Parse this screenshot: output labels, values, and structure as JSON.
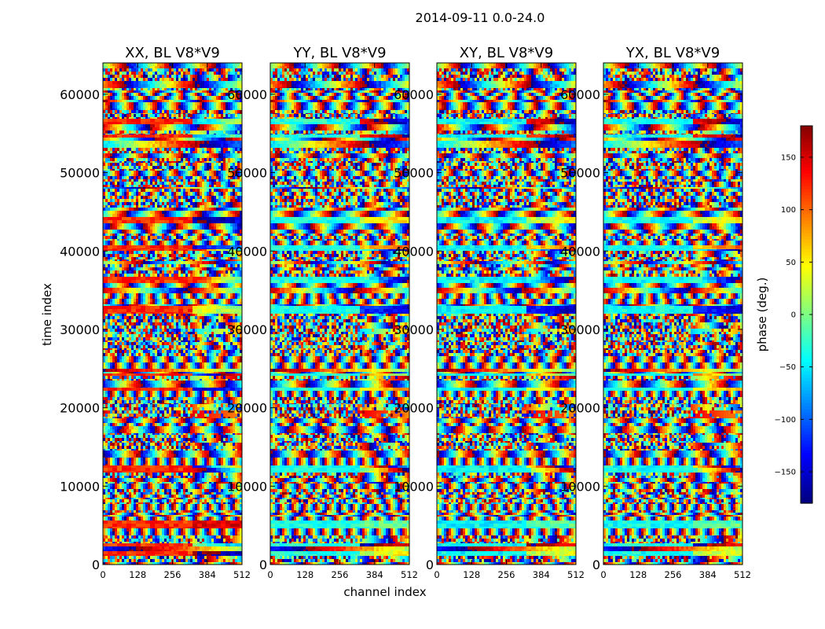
{
  "figure": {
    "title": "2014-09-11 0.0-24.0"
  },
  "chart_data": {
    "type": "heatmap",
    "title": "2014-09-11 0.0-24.0",
    "xlabel": "channel index",
    "ylabel": "time index",
    "xlim": [
      0,
      512
    ],
    "ylim": [
      0,
      64000
    ],
    "x_ticks": [
      "0",
      "128",
      "256",
      "384",
      "512"
    ],
    "y_ticks": [
      "0",
      "10000",
      "20000",
      "30000",
      "40000",
      "50000",
      "60000"
    ],
    "x_tick_values": [
      0,
      128,
      256,
      384,
      512
    ],
    "y_tick_values": [
      0,
      10000,
      20000,
      30000,
      40000,
      50000,
      60000
    ],
    "colormap": "jet",
    "colorbar": {
      "label": "phase (deg.)",
      "range": [
        -180,
        180
      ],
      "ticks": [
        "−150",
        "−100",
        "−50",
        "0",
        "50",
        "100",
        "150"
      ],
      "tick_values": [
        -150,
        -100,
        -50,
        0,
        50,
        100,
        150
      ]
    },
    "panels": [
      {
        "title": "XX, BL V8*V9",
        "base_phase": 120
      },
      {
        "title": "YY, BL V8*V9",
        "base_phase": -35
      },
      {
        "title": "XY, BL V8*V9",
        "base_phase": -45
      },
      {
        "title": "YX, BL V8*V9",
        "base_phase": -40
      }
    ]
  }
}
